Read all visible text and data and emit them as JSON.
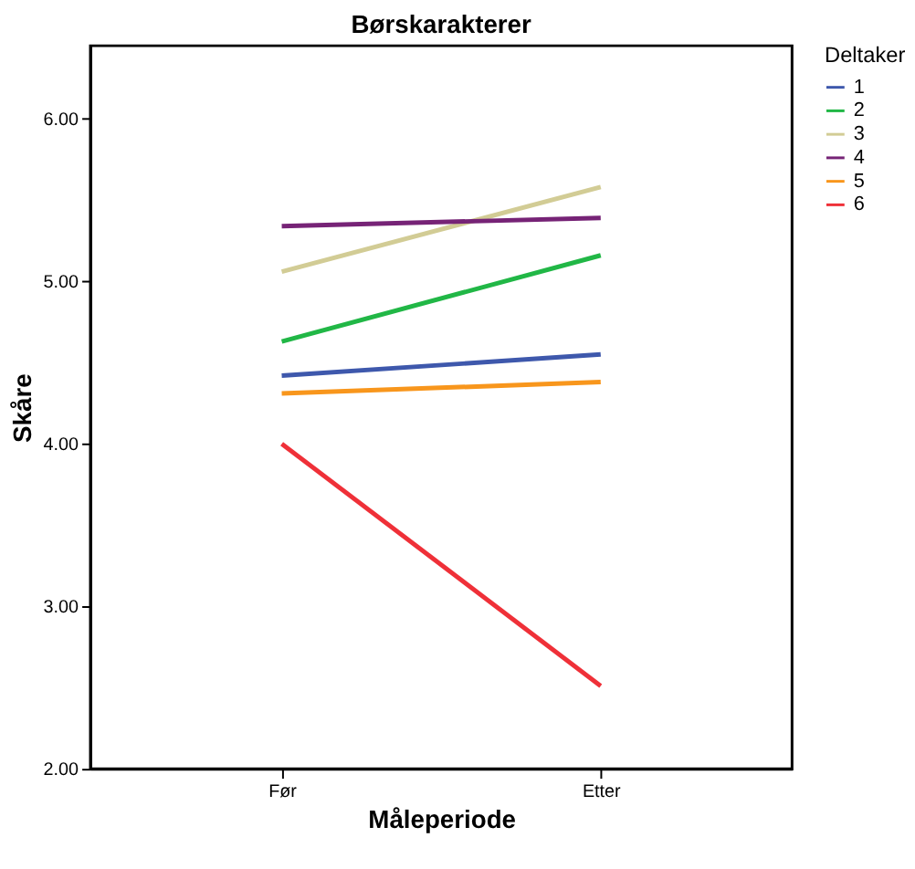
{
  "chart_data": {
    "type": "line",
    "title": "Børskarakterer",
    "xlabel": "Måleperiode",
    "ylabel": "Skåre",
    "legend_title": "Deltaker",
    "categories": [
      "Før",
      "Etter"
    ],
    "series": [
      {
        "name": "1",
        "color": "#3e58ac",
        "values": [
          4.42,
          4.55
        ]
      },
      {
        "name": "2",
        "color": "#21b746",
        "values": [
          4.63,
          5.16
        ]
      },
      {
        "name": "3",
        "color": "#d2cc95",
        "values": [
          5.06,
          5.58
        ]
      },
      {
        "name": "4",
        "color": "#762376",
        "values": [
          5.34,
          5.39
        ]
      },
      {
        "name": "5",
        "color": "#f8961c",
        "values": [
          4.31,
          4.38
        ]
      },
      {
        "name": "6",
        "color": "#ef3038",
        "values": [
          4.0,
          2.51
        ]
      }
    ],
    "ylim": [
      2,
      6.45
    ],
    "yticks": [
      {
        "value": 2,
        "label": "2.00"
      },
      {
        "value": 3,
        "label": "3.00"
      },
      {
        "value": 4,
        "label": "4.00"
      },
      {
        "value": 5,
        "label": "5.00"
      },
      {
        "value": 6,
        "label": "6.00"
      }
    ],
    "grid": false,
    "legend": "right",
    "marker": "none",
    "line_style": "solid"
  }
}
